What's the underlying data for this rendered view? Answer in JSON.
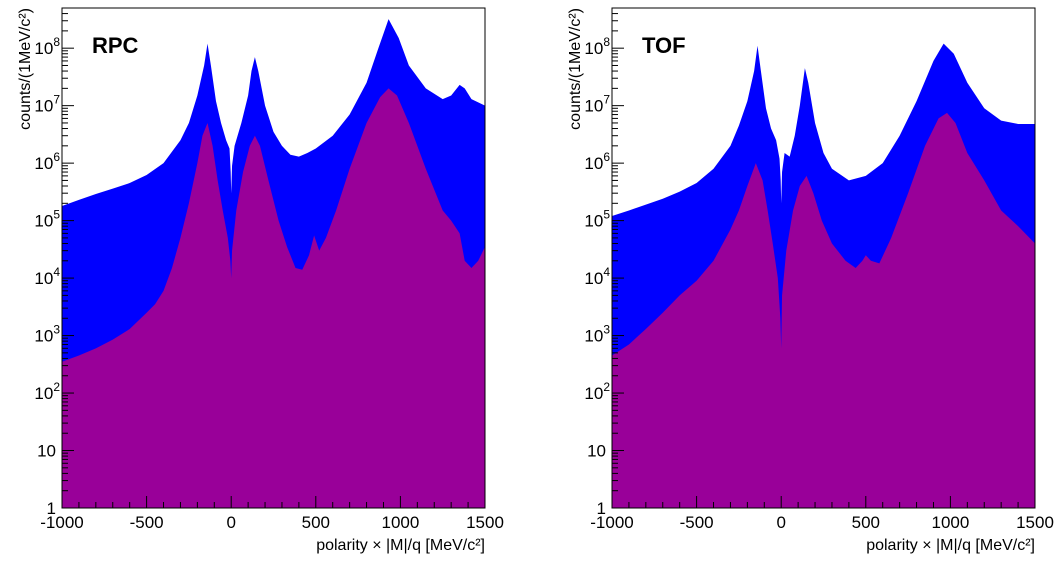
{
  "chart_data": [
    {
      "type": "area",
      "title": "RPC",
      "xlabel": "polarity × |M|/q [MeV/c²]",
      "ylabel": "counts/(1MeV/c²)",
      "yscale": "log",
      "xlim": [
        -1000,
        1500
      ],
      "ylim": [
        1,
        500000000
      ],
      "x_ticks": [
        -1000,
        -500,
        0,
        500,
        1000,
        1500
      ],
      "y_ticks": [
        {
          "value": 1,
          "base": "1",
          "exp": ""
        },
        {
          "value": 10,
          "base": "10",
          "exp": ""
        },
        {
          "value": 100,
          "base": "10",
          "exp": "2"
        },
        {
          "value": 1000,
          "base": "10",
          "exp": "3"
        },
        {
          "value": 10000,
          "base": "10",
          "exp": "4"
        },
        {
          "value": 100000,
          "base": "10",
          "exp": "5"
        },
        {
          "value": 1000000,
          "base": "10",
          "exp": "6"
        },
        {
          "value": 10000000,
          "base": "10",
          "exp": "7"
        },
        {
          "value": 100000000,
          "base": "10",
          "exp": "8"
        }
      ],
      "grid": false,
      "series": [
        {
          "color": "#0000ff",
          "points": [
            [
              -1000,
              180000
            ],
            [
              -900,
              230000
            ],
            [
              -800,
              290000
            ],
            [
              -700,
              360000
            ],
            [
              -600,
              450000
            ],
            [
              -500,
              620000
            ],
            [
              -400,
              1000000
            ],
            [
              -300,
              2500000
            ],
            [
              -250,
              5000000
            ],
            [
              -200,
              15000000
            ],
            [
              -160,
              50000000
            ],
            [
              -140,
              120000000
            ],
            [
              -120,
              50000000
            ],
            [
              -90,
              12000000
            ],
            [
              -60,
              5000000
            ],
            [
              -30,
              2500000
            ],
            [
              -10,
              1800000
            ],
            [
              -3,
              700000
            ],
            [
              0,
              300000
            ],
            [
              5,
              900000
            ],
            [
              20,
              2000000
            ],
            [
              60,
              5000000
            ],
            [
              100,
              15000000
            ],
            [
              120,
              40000000
            ],
            [
              140,
              70000000
            ],
            [
              160,
              40000000
            ],
            [
              200,
              10000000
            ],
            [
              250,
              3500000
            ],
            [
              300,
              2000000
            ],
            [
              350,
              1400000
            ],
            [
              400,
              1300000
            ],
            [
              450,
              1500000
            ],
            [
              500,
              1800000
            ],
            [
              600,
              3000000
            ],
            [
              700,
              7000000
            ],
            [
              800,
              25000000
            ],
            [
              870,
              100000000
            ],
            [
              930,
              320000000
            ],
            [
              990,
              150000000
            ],
            [
              1050,
              50000000
            ],
            [
              1150,
              20000000
            ],
            [
              1250,
              13000000
            ],
            [
              1300,
              15000000
            ],
            [
              1350,
              23000000
            ],
            [
              1380,
              20000000
            ],
            [
              1420,
              13000000
            ],
            [
              1500,
              10000000
            ]
          ]
        },
        {
          "color": "#990099",
          "points": [
            [
              -1000,
              350
            ],
            [
              -900,
              450
            ],
            [
              -800,
              600
            ],
            [
              -700,
              850
            ],
            [
              -600,
              1300
            ],
            [
              -500,
              2500
            ],
            [
              -450,
              3500
            ],
            [
              -400,
              6000
            ],
            [
              -350,
              15000
            ],
            [
              -300,
              50000
            ],
            [
              -250,
              200000
            ],
            [
              -200,
              1000000
            ],
            [
              -170,
              3000000
            ],
            [
              -140,
              5000000
            ],
            [
              -110,
              2000000
            ],
            [
              -80,
              500000
            ],
            [
              -50,
              150000
            ],
            [
              -20,
              50000
            ],
            [
              -5,
              20000
            ],
            [
              0,
              10000
            ],
            [
              5,
              30000
            ],
            [
              30,
              150000
            ],
            [
              70,
              700000
            ],
            [
              110,
              2000000
            ],
            [
              140,
              3000000
            ],
            [
              170,
              2000000
            ],
            [
              220,
              500000
            ],
            [
              280,
              100000
            ],
            [
              330,
              35000
            ],
            [
              380,
              15000
            ],
            [
              420,
              14000
            ],
            [
              460,
              25000
            ],
            [
              490,
              55000
            ],
            [
              520,
              30000
            ],
            [
              560,
              50000
            ],
            [
              620,
              150000
            ],
            [
              700,
              800000
            ],
            [
              800,
              5000000
            ],
            [
              880,
              14000000
            ],
            [
              930,
              20000000
            ],
            [
              980,
              15000000
            ],
            [
              1050,
              5000000
            ],
            [
              1150,
              800000
            ],
            [
              1250,
              150000
            ],
            [
              1300,
              100000
            ],
            [
              1350,
              60000
            ],
            [
              1380,
              20000
            ],
            [
              1420,
              15000
            ],
            [
              1460,
              20000
            ],
            [
              1500,
              35000
            ]
          ]
        }
      ]
    },
    {
      "type": "area",
      "title": "TOF",
      "xlabel": "polarity × |M|/q [MeV/c²]",
      "ylabel": "counts/(1MeV/c²)",
      "yscale": "log",
      "xlim": [
        -1000,
        1500
      ],
      "ylim": [
        1,
        500000000
      ],
      "x_ticks": [
        -1000,
        -500,
        0,
        500,
        1000,
        1500
      ],
      "y_ticks": [
        {
          "value": 1,
          "base": "1",
          "exp": ""
        },
        {
          "value": 10,
          "base": "10",
          "exp": ""
        },
        {
          "value": 100,
          "base": "10",
          "exp": "2"
        },
        {
          "value": 1000,
          "base": "10",
          "exp": "3"
        },
        {
          "value": 10000,
          "base": "10",
          "exp": "4"
        },
        {
          "value": 100000,
          "base": "10",
          "exp": "5"
        },
        {
          "value": 1000000,
          "base": "10",
          "exp": "6"
        },
        {
          "value": 10000000,
          "base": "10",
          "exp": "7"
        },
        {
          "value": 100000000,
          "base": "10",
          "exp": "8"
        }
      ],
      "grid": false,
      "series": [
        {
          "color": "#0000ff",
          "points": [
            [
              -1000,
              120000
            ],
            [
              -900,
              150000
            ],
            [
              -800,
              190000
            ],
            [
              -700,
              240000
            ],
            [
              -600,
              320000
            ],
            [
              -500,
              450000
            ],
            [
              -400,
              800000
            ],
            [
              -300,
              2000000
            ],
            [
              -250,
              4500000
            ],
            [
              -200,
              12000000
            ],
            [
              -160,
              40000000
            ],
            [
              -140,
              110000000
            ],
            [
              -120,
              40000000
            ],
            [
              -90,
              9000000
            ],
            [
              -60,
              4000000
            ],
            [
              -30,
              2500000
            ],
            [
              -10,
              1200000
            ],
            [
              -3,
              500000
            ],
            [
              0,
              200000
            ],
            [
              5,
              700000
            ],
            [
              20,
              1500000
            ],
            [
              50,
              1300000
            ],
            [
              80,
              3000000
            ],
            [
              110,
              10000000
            ],
            [
              140,
              45000000
            ],
            [
              160,
              25000000
            ],
            [
              200,
              5000000
            ],
            [
              250,
              1500000
            ],
            [
              300,
              800000
            ],
            [
              400,
              500000
            ],
            [
              500,
              600000
            ],
            [
              600,
              1000000
            ],
            [
              700,
              3000000
            ],
            [
              800,
              12000000
            ],
            [
              900,
              60000000
            ],
            [
              960,
              120000000
            ],
            [
              1020,
              80000000
            ],
            [
              1100,
              25000000
            ],
            [
              1200,
              9000000
            ],
            [
              1300,
              5500000
            ],
            [
              1400,
              4800000
            ],
            [
              1500,
              4800000
            ]
          ]
        },
        {
          "color": "#990099",
          "points": [
            [
              -1000,
              450
            ],
            [
              -900,
              700
            ],
            [
              -800,
              1300
            ],
            [
              -700,
              2500
            ],
            [
              -600,
              5000
            ],
            [
              -500,
              9000
            ],
            [
              -400,
              20000
            ],
            [
              -300,
              70000
            ],
            [
              -250,
              150000
            ],
            [
              -200,
              400000
            ],
            [
              -150,
              1000000
            ],
            [
              -110,
              500000
            ],
            [
              -80,
              150000
            ],
            [
              -50,
              40000
            ],
            [
              -20,
              10000
            ],
            [
              -5,
              2000
            ],
            [
              0,
              600
            ],
            [
              5,
              5000
            ],
            [
              30,
              30000
            ],
            [
              70,
              150000
            ],
            [
              110,
              400000
            ],
            [
              150,
              600000
            ],
            [
              190,
              300000
            ],
            [
              240,
              100000
            ],
            [
              300,
              40000
            ],
            [
              380,
              20000
            ],
            [
              440,
              15000
            ],
            [
              480,
              20000
            ],
            [
              500,
              25000
            ],
            [
              530,
              20000
            ],
            [
              580,
              18000
            ],
            [
              650,
              50000
            ],
            [
              750,
              300000
            ],
            [
              850,
              2000000
            ],
            [
              930,
              6000000
            ],
            [
              980,
              7500000
            ],
            [
              1030,
              5000000
            ],
            [
              1100,
              1500000
            ],
            [
              1200,
              500000
            ],
            [
              1300,
              150000
            ],
            [
              1400,
              80000
            ],
            [
              1500,
              40000
            ]
          ]
        }
      ]
    }
  ]
}
